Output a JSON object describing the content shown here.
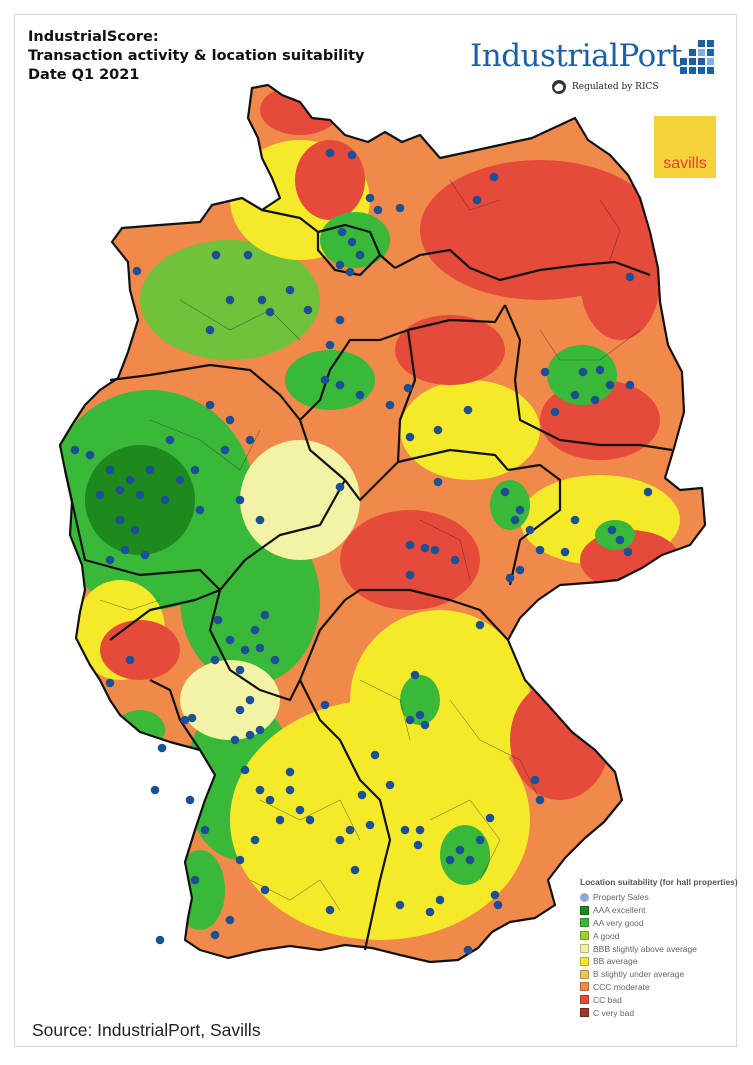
{
  "title": {
    "line1": "IndustrialScore:",
    "line2": "Transaction activity & location suitability",
    "line3": "Date Q1 2021"
  },
  "brand": {
    "name": "IndustrialPort",
    "regulated": "Regulated by RICS",
    "primary_color": "#1b5faa"
  },
  "partner": {
    "name": "savills",
    "bg_color": "#f6d23a",
    "text_color": "#ef3b2c"
  },
  "legend": {
    "title": "Location suitability (for hall properties)",
    "items": [
      {
        "label": "Property Sales",
        "color": "#8aa8d8",
        "shape": "dot"
      },
      {
        "label": "AAA excellent",
        "color": "#1e8a1e"
      },
      {
        "label": "AA very good",
        "color": "#39b839"
      },
      {
        "label": "A good",
        "color": "#9fd02e"
      },
      {
        "label": "BBB slightly above average",
        "color": "#f3f3a6"
      },
      {
        "label": "BB average",
        "color": "#f4ea2a"
      },
      {
        "label": "B slightly under average",
        "color": "#f2c454"
      },
      {
        "label": "CCC moderate",
        "color": "#f0894a"
      },
      {
        "label": "CC bad",
        "color": "#e54a3a"
      },
      {
        "label": "C very bad",
        "color": "#a1352a"
      }
    ]
  },
  "map_colors": {
    "sales_dot": "#1b4f96",
    "border": "#111111"
  },
  "source": "Source: IndustrialPort, Savills"
}
